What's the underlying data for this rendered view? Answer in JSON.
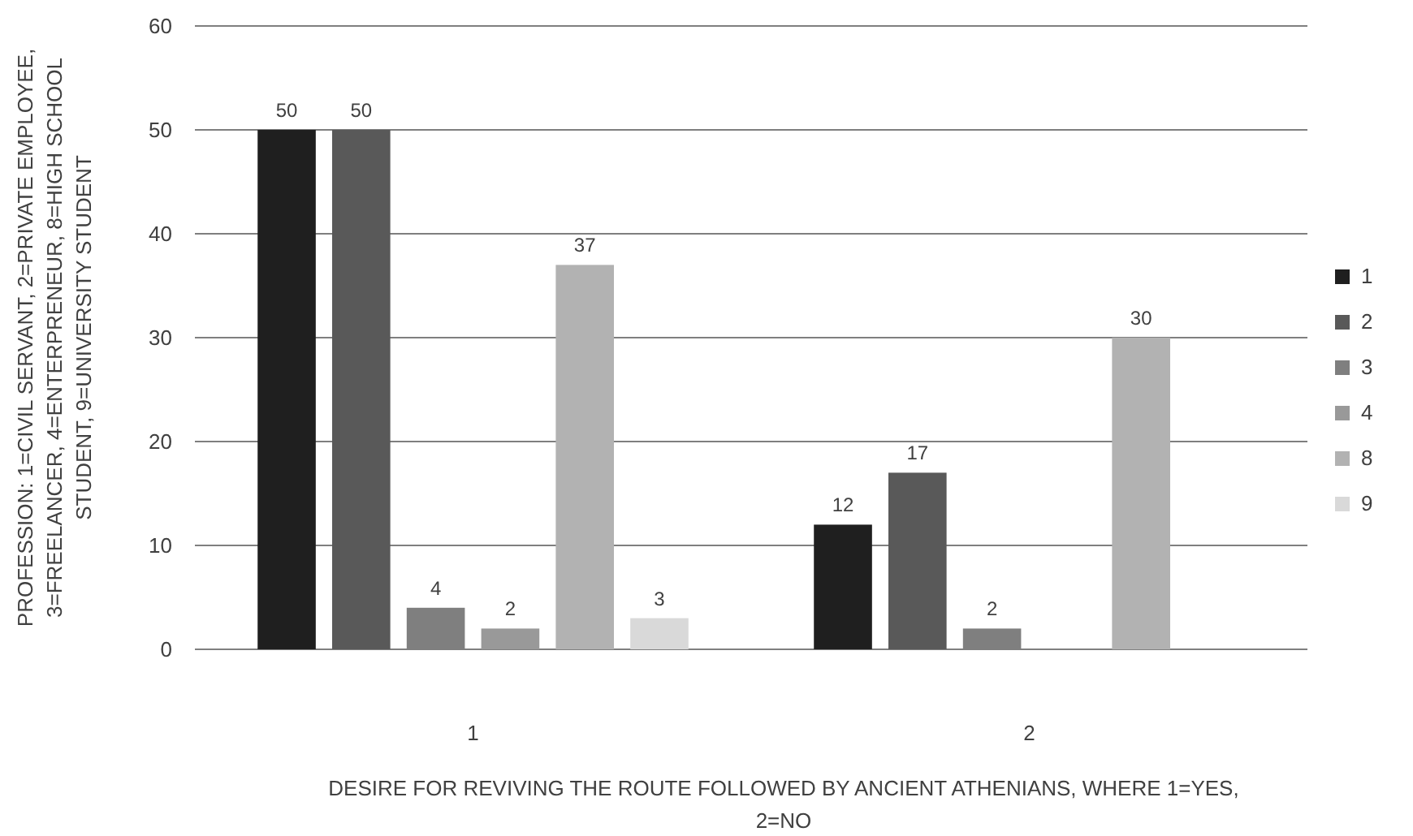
{
  "chart_data": {
    "type": "bar",
    "xlabel": "DESIRE FOR REVIVING THE ROUTE FOLLOWED BY ANCIENT ATHENIANS, WHERE 1=YES, 2=NO",
    "ylabel": "PROFESSION: 1=CIVIL SERVANT, 2=PRIVATE EMPLOYEE, 3=FREELANCER, 4=ENTERPRENEUR, 8=HIGH SCHOOL STUDENT, 9=UNIVERSITY STUDENT",
    "categories": [
      "1",
      "2"
    ],
    "series": [
      {
        "name": "1",
        "color": "#1f1f1f",
        "values": [
          50,
          12
        ]
      },
      {
        "name": "2",
        "color": "#595959",
        "values": [
          50,
          17
        ]
      },
      {
        "name": "3",
        "color": "#7f7f7f",
        "values": [
          4,
          2
        ]
      },
      {
        "name": "4",
        "color": "#999999",
        "values": [
          2,
          null
        ]
      },
      {
        "name": "8",
        "color": "#b2b2b2",
        "values": [
          37,
          30
        ]
      },
      {
        "name": "9",
        "color": "#d9d9d9",
        "values": [
          3,
          null
        ]
      }
    ],
    "ylim": [
      0,
      60
    ],
    "yticks": [
      0,
      10,
      20,
      30,
      40,
      50,
      60
    ],
    "grid": "y",
    "legend": "right",
    "data_labels": true
  }
}
